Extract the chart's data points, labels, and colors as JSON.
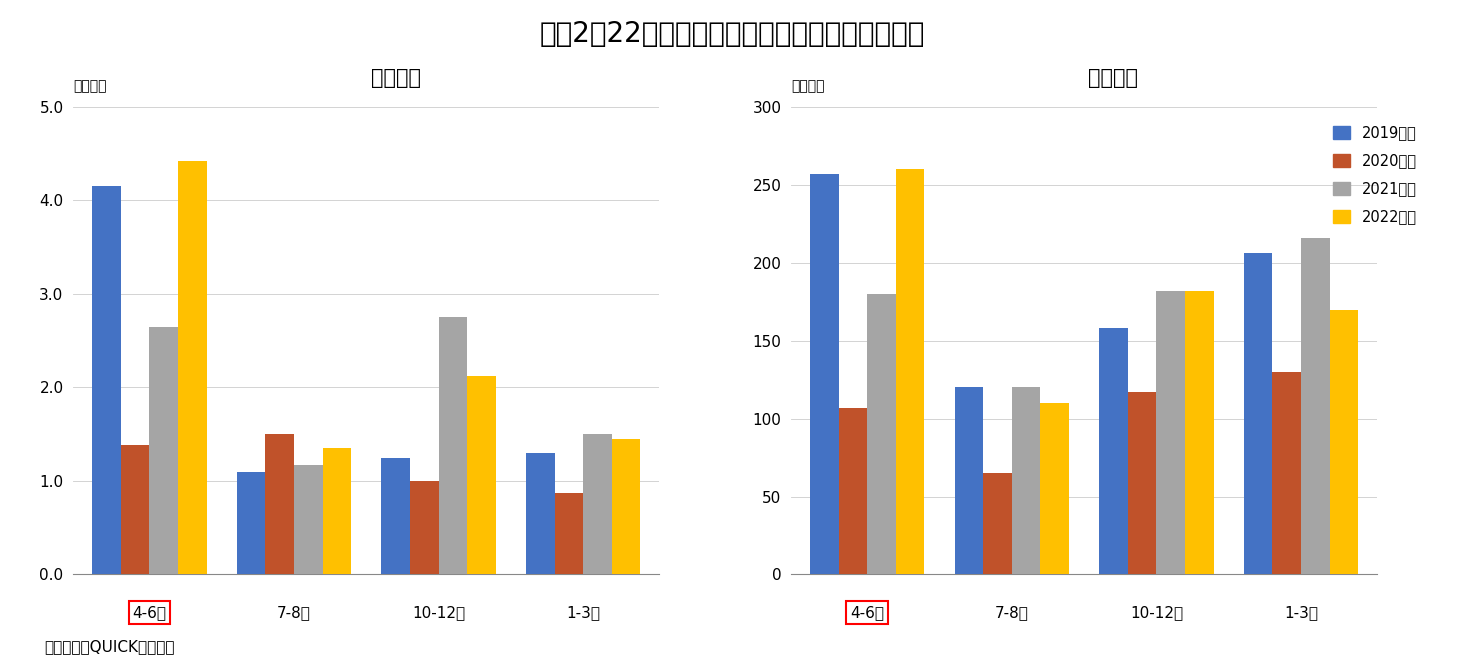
{
  "title": "図袅2　22年度は４－６月の設定が最も多かった",
  "title_fontsize": 20,
  "source_text": "（資料）　QUICKから作成",
  "categories": [
    "4-6月",
    "7-8月",
    "10-12月",
    "1-3月"
  ],
  "highlighted_category": "4-6月",
  "legend_labels": [
    "2019年度",
    "2020年度",
    "2021年度",
    "2022年度"
  ],
  "bar_colors": [
    "#4472C4",
    "#C0522A",
    "#A5A5A5",
    "#FFC000"
  ],
  "chart1": {
    "title": "設定金額",
    "ylabel": "《兆円》",
    "ylim": [
      0,
      5.0
    ],
    "yticks": [
      0.0,
      1.0,
      2.0,
      3.0,
      4.0,
      5.0
    ],
    "ytick_labels": [
      "0.0",
      "1.0",
      "2.0",
      "3.0",
      "4.0",
      "5.0"
    ],
    "data_2019": [
      4.15,
      1.1,
      1.25,
      1.3
    ],
    "data_2020": [
      1.38,
      1.5,
      1.0,
      0.87
    ],
    "data_2021": [
      2.65,
      1.17,
      2.75,
      1.5
    ],
    "data_2022": [
      4.42,
      1.35,
      2.12,
      1.45
    ]
  },
  "chart2": {
    "title": "設定件数",
    "ylabel": "《件数》",
    "ylim": [
      0,
      300
    ],
    "yticks": [
      0,
      50,
      100,
      150,
      200,
      250,
      300
    ],
    "ytick_labels": [
      "0",
      "50",
      "100",
      "150",
      "200",
      "250",
      "300"
    ],
    "data_2019": [
      257,
      120,
      158,
      206
    ],
    "data_2020": [
      107,
      65,
      117,
      130
    ],
    "data_2021": [
      180,
      120,
      182,
      216
    ],
    "data_2022": [
      260,
      110,
      182,
      170
    ]
  }
}
